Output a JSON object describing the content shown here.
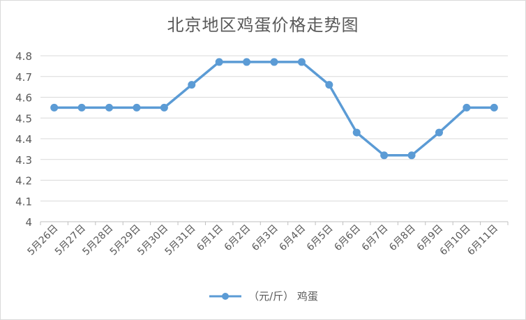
{
  "chart_data": {
    "type": "line",
    "title": "北京地区鸡蛋价格走势图",
    "categories": [
      "5月26日",
      "5月27日",
      "5月28日",
      "5月29日",
      "5月30日",
      "5月31日",
      "6月1日",
      "6月2日",
      "6月3日",
      "6月4日",
      "6月5日",
      "6月6日",
      "6月7日",
      "6月8日",
      "6月9日",
      "6月10日",
      "6月11日"
    ],
    "series": [
      {
        "name": "（元/斤） 鸡蛋",
        "color": "#5b9bd5",
        "values": [
          4.55,
          4.55,
          4.55,
          4.55,
          4.55,
          4.66,
          4.77,
          4.77,
          4.77,
          4.77,
          4.66,
          4.43,
          4.32,
          4.32,
          4.43,
          4.55,
          4.55
        ]
      }
    ],
    "ylim": [
      4,
      4.8
    ],
    "yticks": [
      "4",
      "4.1",
      "4.2",
      "4.3",
      "4.4",
      "4.5",
      "4.6",
      "4.7",
      "4.8"
    ],
    "grid": true,
    "legend_position": "bottom"
  }
}
